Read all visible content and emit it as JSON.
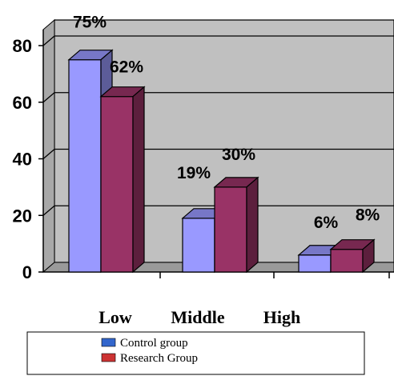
{
  "chart_data": {
    "type": "bar",
    "categories": [
      "Low",
      "Middle",
      "High"
    ],
    "series": [
      {
        "name": "Control group",
        "values": [
          75,
          19,
          6
        ],
        "labels": [
          "75%",
          "19%",
          "6%"
        ],
        "color": "#9999ff"
      },
      {
        "name": "Research Group",
        "values": [
          62,
          30,
          8
        ],
        "labels": [
          "62%",
          "30%",
          "8%"
        ],
        "color": "#993366"
      }
    ],
    "yticks": [
      0,
      20,
      40,
      60,
      80
    ],
    "ylim": [
      0,
      80
    ],
    "grid": true,
    "legend_position": "bottom",
    "style": "3d"
  }
}
